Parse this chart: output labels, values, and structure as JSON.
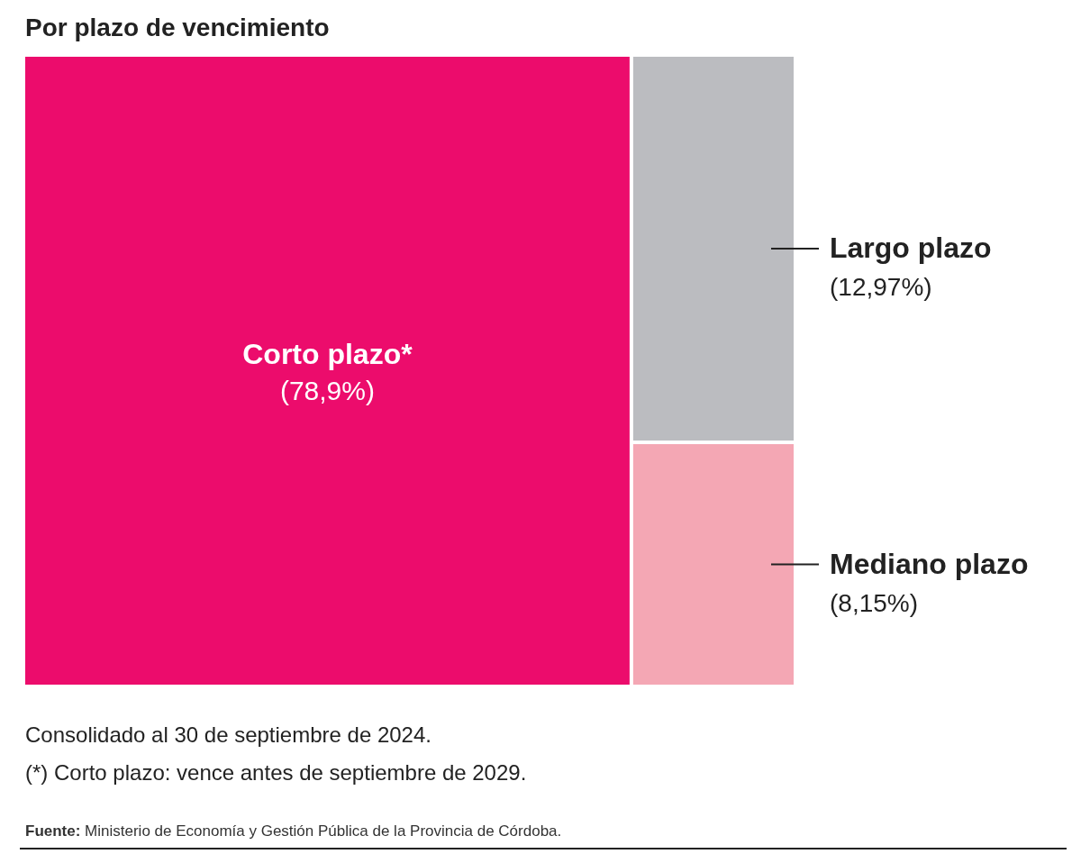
{
  "chart_data": {
    "type": "other",
    "title": "Por plazo de vencimiento",
    "categories": [
      "Corto plazo*",
      "Largo plazo",
      "Mediano plazo"
    ],
    "values": [
      78.9,
      12.97,
      8.15
    ],
    "value_labels": [
      "(78,9%)",
      "(12,97%)",
      "(8,15%)"
    ],
    "colors": [
      "#ec0c6c",
      "#bbbcc0",
      "#f4a7b4"
    ],
    "annotations": [
      "Consolidado al 30 de septiembre de 2024.",
      "(*) Corto plazo: vence antes de septiembre de 2029.",
      "Fuente: Ministerio de Economía y Gestión Pública de la Provincia de Córdoba."
    ]
  }
}
